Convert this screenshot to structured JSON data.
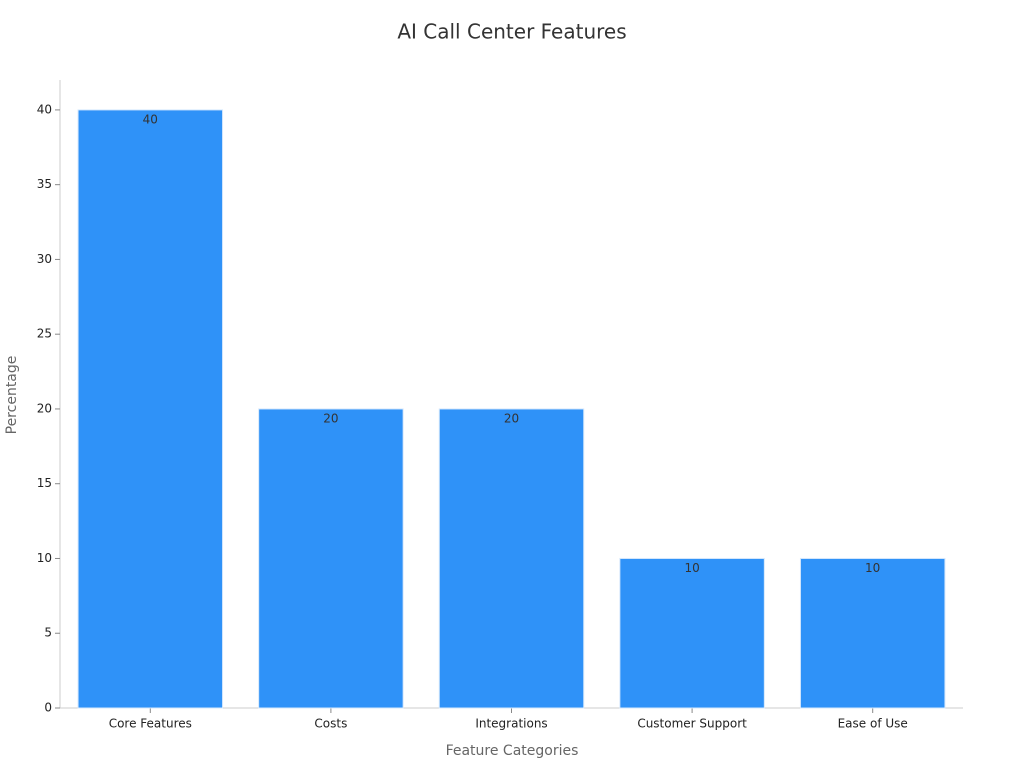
{
  "chart_data": {
    "type": "bar",
    "title": "AI Call Center Features",
    "x_label": "Feature Categories",
    "y_label": "Percentage",
    "categories": [
      "Core Features",
      "Costs",
      "Integrations",
      "Customer Support",
      "Ease of Use"
    ],
    "values": [
      40,
      20,
      20,
      10,
      10
    ],
    "color": "#2f92f8",
    "ylim": [
      0,
      42
    ],
    "yticks": [
      0,
      5,
      10,
      15,
      20,
      25,
      30,
      35,
      40
    ],
    "grid": false
  }
}
